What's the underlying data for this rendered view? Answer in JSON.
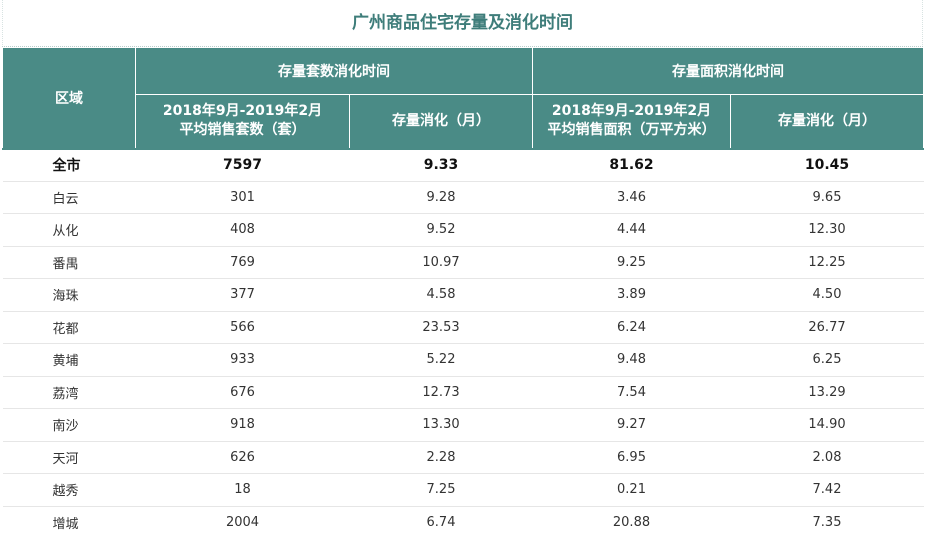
{
  "title": "广州商品住宅存量及消化时间",
  "header": {
    "region": "区域",
    "group_units": "存量套数消化时间",
    "group_area": "存量面积消化时间",
    "sub_units_line1": "2018年9月-2019年2月",
    "sub_units_line2": "平均销售套数（套）",
    "sub_units_months": "存量消化（月）",
    "sub_area_line1": "2018年9月-2019年2月",
    "sub_area_line2": "平均销售面积（万平方米）",
    "sub_area_months": "存量消化（月）"
  },
  "rows": [
    {
      "name": "全市",
      "units": "7597",
      "units_months": "9.33",
      "area": "81.62",
      "area_months": "10.45"
    },
    {
      "name": "白云",
      "units": "301",
      "units_months": "9.28",
      "area": "3.46",
      "area_months": "9.65"
    },
    {
      "name": "从化",
      "units": "408",
      "units_months": "9.52",
      "area": "4.44",
      "area_months": "12.30"
    },
    {
      "name": "番禺",
      "units": "769",
      "units_months": "10.97",
      "area": "9.25",
      "area_months": "12.25"
    },
    {
      "name": "海珠",
      "units": "377",
      "units_months": "4.58",
      "area": "3.89",
      "area_months": "4.50"
    },
    {
      "name": "花都",
      "units": "566",
      "units_months": "23.53",
      "area": "6.24",
      "area_months": "26.77"
    },
    {
      "name": "黄埔",
      "units": "933",
      "units_months": "5.22",
      "area": "9.48",
      "area_months": "6.25"
    },
    {
      "name": "荔湾",
      "units": "676",
      "units_months": "12.73",
      "area": "7.54",
      "area_months": "13.29"
    },
    {
      "name": "南沙",
      "units": "918",
      "units_months": "13.30",
      "area": "9.27",
      "area_months": "14.90"
    },
    {
      "name": "天河",
      "units": "626",
      "units_months": "2.28",
      "area": "6.95",
      "area_months": "2.08"
    },
    {
      "name": "越秀",
      "units": "18",
      "units_months": "7.25",
      "area": "0.21",
      "area_months": "7.42"
    },
    {
      "name": "增城",
      "units": "2004",
      "units_months": "6.74",
      "area": "20.88",
      "area_months": "7.35"
    }
  ],
  "colors": {
    "header_bg": "#4a8b86",
    "title": "#3e7d7a"
  }
}
